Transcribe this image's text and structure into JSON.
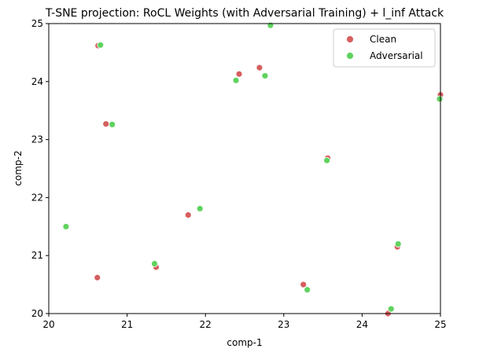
{
  "chart_data": {
    "type": "scatter",
    "title": "T-SNE projection: RoCL Weights (with Adversarial Training) + l_inf Attack",
    "xlabel": "comp-1",
    "ylabel": "comp-2",
    "xlim": [
      20,
      25
    ],
    "ylim": [
      20,
      25
    ],
    "xticks": [
      "20",
      "21",
      "22",
      "23",
      "24",
      "25"
    ],
    "yticks": [
      "20",
      "21",
      "22",
      "23",
      "24",
      "25"
    ],
    "grid": false,
    "legend_position": "top-right",
    "series": [
      {
        "name": "Clean",
        "color": "#d65f5f",
        "points": [
          [
            20.63,
            24.62
          ],
          [
            20.73,
            23.27
          ],
          [
            22.43,
            24.13
          ],
          [
            22.69,
            24.24
          ],
          [
            21.78,
            21.7
          ],
          [
            20.62,
            20.62
          ],
          [
            21.37,
            20.8
          ],
          [
            23.25,
            20.5
          ],
          [
            23.56,
            22.68
          ],
          [
            24.45,
            21.15
          ],
          [
            24.33,
            20.0
          ],
          [
            25.0,
            23.77
          ]
        ]
      },
      {
        "name": "Adversarial",
        "color": "#5fd35f",
        "points": [
          [
            20.66,
            24.63
          ],
          [
            20.81,
            23.26
          ],
          [
            22.39,
            24.02
          ],
          [
            22.76,
            24.1
          ],
          [
            22.83,
            24.97
          ],
          [
            21.93,
            21.81
          ],
          [
            20.22,
            21.5
          ],
          [
            21.35,
            20.86
          ],
          [
            23.3,
            20.41
          ],
          [
            23.55,
            22.64
          ],
          [
            24.46,
            21.2
          ],
          [
            24.37,
            20.08
          ],
          [
            24.99,
            23.7
          ]
        ]
      }
    ]
  }
}
